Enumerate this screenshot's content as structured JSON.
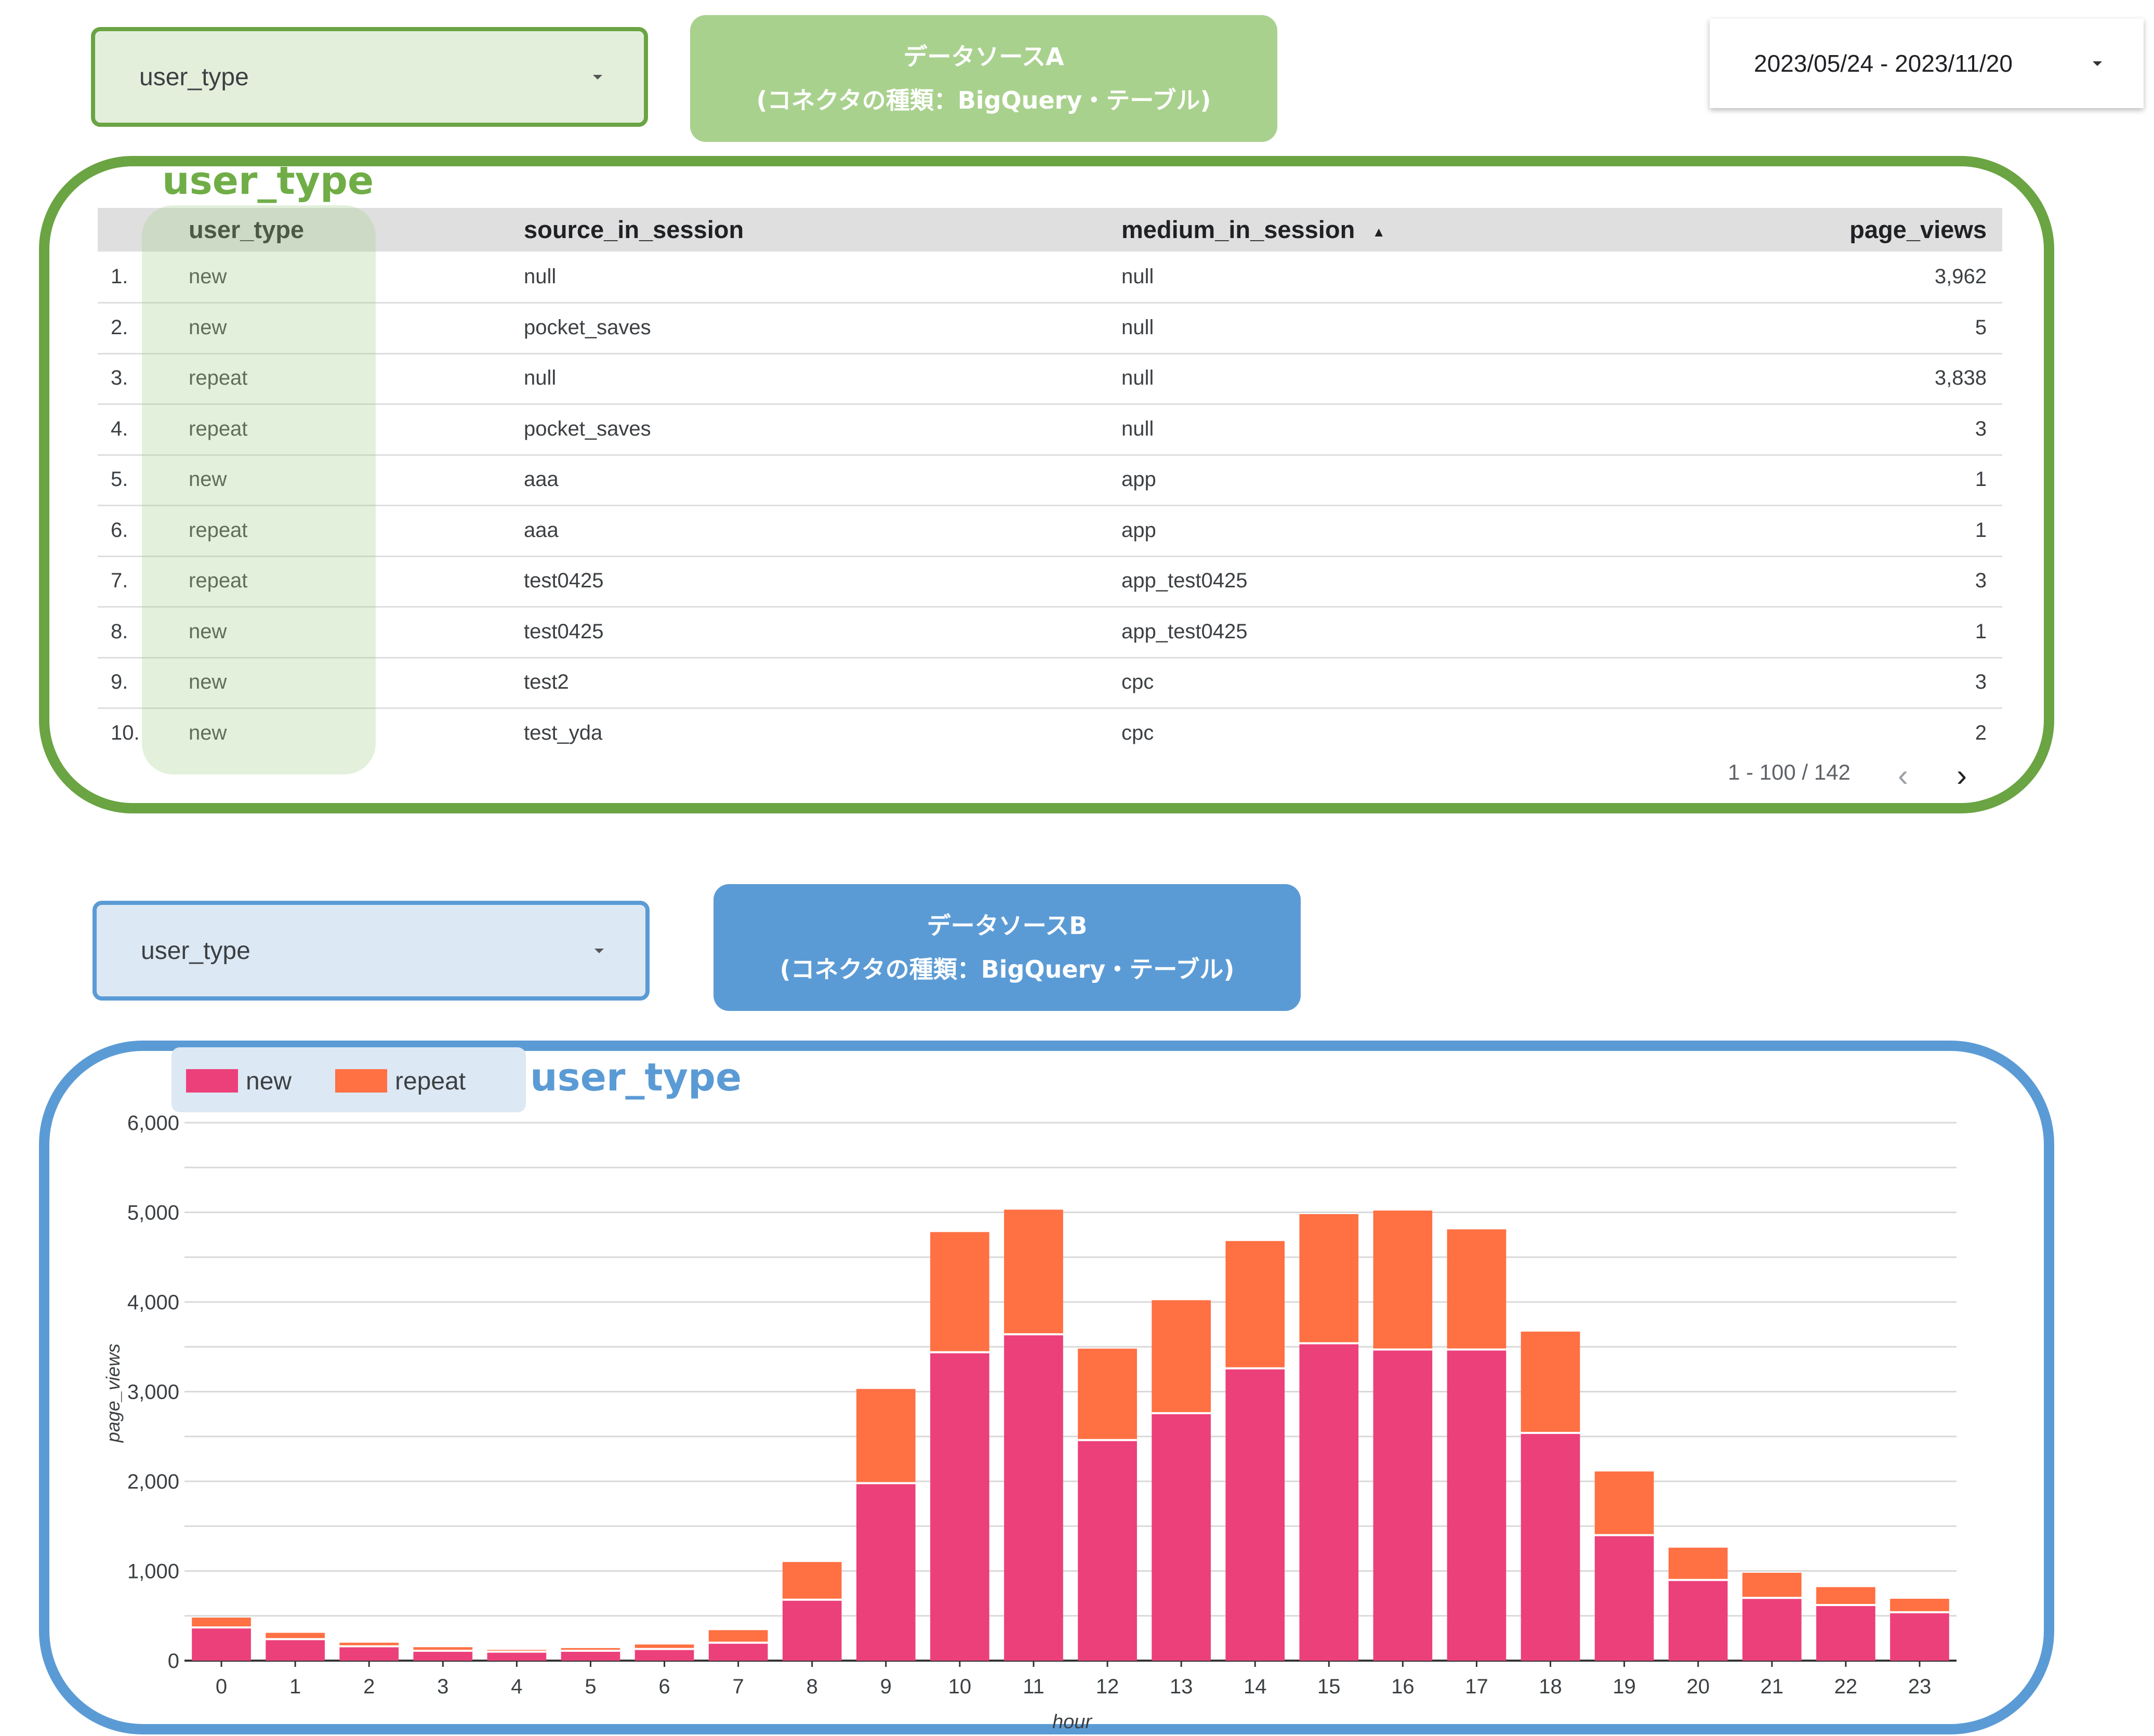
{
  "controls": {
    "dropdown_a": {
      "value": "user_type"
    },
    "dropdown_b": {
      "value": "user_type"
    },
    "date_range": "2023/05/24 - 2023/11/20"
  },
  "source_a": {
    "line1": "データソースA",
    "line2": "(コネクタの種類：BigQuery・テーブル)"
  },
  "source_b": {
    "line1": "データソースB",
    "line2": "(コネクタの種類：BigQuery・テーブル)"
  },
  "overlay_labels": {
    "a": "user_type",
    "b": "user_type"
  },
  "table": {
    "headers": [
      "user_type",
      "source_in_session",
      "medium_in_session",
      "page_views"
    ],
    "sort_indicator": "▲",
    "rows": [
      {
        "idx": "1.",
        "user_type": "new",
        "source": "null",
        "medium": "null",
        "page_views": "3,962"
      },
      {
        "idx": "2.",
        "user_type": "new",
        "source": "pocket_saves",
        "medium": "null",
        "page_views": "5"
      },
      {
        "idx": "3.",
        "user_type": "repeat",
        "source": "null",
        "medium": "null",
        "page_views": "3,838"
      },
      {
        "idx": "4.",
        "user_type": "repeat",
        "source": "pocket_saves",
        "medium": "null",
        "page_views": "3"
      },
      {
        "idx": "5.",
        "user_type": "new",
        "source": "aaa",
        "medium": "app",
        "page_views": "1"
      },
      {
        "idx": "6.",
        "user_type": "repeat",
        "source": "aaa",
        "medium": "app",
        "page_views": "1"
      },
      {
        "idx": "7.",
        "user_type": "repeat",
        "source": "test0425",
        "medium": "app_test0425",
        "page_views": "3"
      },
      {
        "idx": "8.",
        "user_type": "new",
        "source": "test0425",
        "medium": "app_test0425",
        "page_views": "1"
      },
      {
        "idx": "9.",
        "user_type": "new",
        "source": "test2",
        "medium": "cpc",
        "page_views": "3"
      },
      {
        "idx": "10.",
        "user_type": "new",
        "source": "test_yda",
        "medium": "cpc",
        "page_views": "2"
      }
    ],
    "pagination": "1 - 100 / 142",
    "prev_icon": "chevron-left-icon",
    "next_icon": "chevron-right-icon"
  },
  "chart_data": {
    "type": "bar",
    "stacked": true,
    "xlabel": "hour",
    "ylabel": "page_views",
    "ylim": [
      0,
      6000
    ],
    "y_ticks": [
      "0",
      "1,000",
      "2,000",
      "3,000",
      "4,000",
      "5,000",
      "6,000"
    ],
    "categories": [
      "0",
      "1",
      "2",
      "3",
      "4",
      "5",
      "6",
      "7",
      "8",
      "9",
      "10",
      "11",
      "12",
      "13",
      "14",
      "15",
      "16",
      "17",
      "18",
      "19",
      "20",
      "21",
      "22",
      "23"
    ],
    "series": [
      {
        "name": "new",
        "color": "#ec407a",
        "values": [
          370,
          240,
          160,
          110,
          100,
          110,
          130,
          200,
          680,
          1980,
          3440,
          3640,
          2460,
          2760,
          3260,
          3540,
          3470,
          3470,
          2540,
          1400,
          900,
          700,
          620,
          540
        ]
      },
      {
        "name": "repeat",
        "color": "#ff7043",
        "values": [
          110,
          70,
          40,
          40,
          20,
          30,
          50,
          140,
          420,
          1050,
          1340,
          1390,
          1020,
          1260,
          1420,
          1440,
          1550,
          1340,
          1130,
          710,
          360,
          280,
          200,
          150
        ]
      }
    ],
    "legend_position": "top-left",
    "grid": true
  }
}
